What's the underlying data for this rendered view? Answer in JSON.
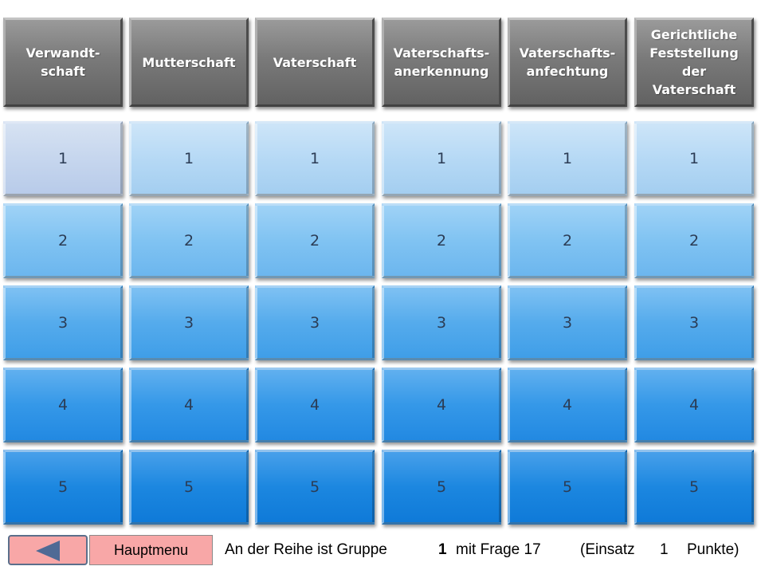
{
  "board": {
    "categories": [
      {
        "title": "Verwandt-\nschaft"
      },
      {
        "title": "Mutterschaft"
      },
      {
        "title": "Vaterschaft"
      },
      {
        "title": "Vaterschafts-\nanerkennung"
      },
      {
        "title": "Vaterschafts-\nanfechtung"
      },
      {
        "title": "Gerichtliche\nFeststellung\nder\nVaterschaft"
      }
    ],
    "rows": [
      {
        "label": "1",
        "played_columns": [
          0
        ]
      },
      {
        "label": "2",
        "played_columns": []
      },
      {
        "label": "3",
        "played_columns": []
      },
      {
        "label": "4",
        "played_columns": []
      },
      {
        "label": "5",
        "played_columns": []
      }
    ]
  },
  "footer": {
    "back_icon": "left-triangle-icon",
    "menu_label": "Hauptmenu",
    "status": {
      "prefix": "An der Reihe ist Gruppe",
      "group": "1",
      "question_text": "mit Frage 17",
      "stake_open": "(Einsatz",
      "stake": "1",
      "stake_close": "Punkte)"
    }
  }
}
